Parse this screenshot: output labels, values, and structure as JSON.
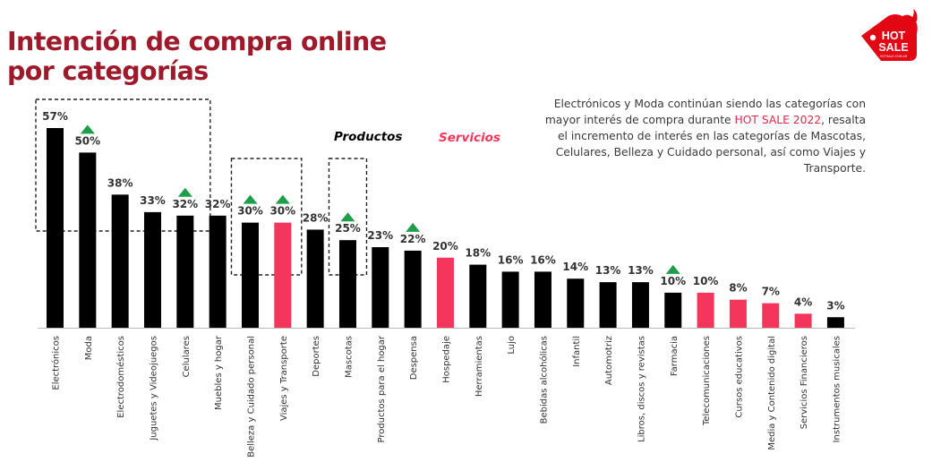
{
  "title": {
    "line1": "Intención de compra online",
    "line2": "por categorías"
  },
  "note": {
    "part1": "Electrónicos y Moda continúan siendo las categorías con mayor interés de compra durante ",
    "highlight": "HOT SALE 2022",
    "part2": ", resalta el incremento de interés en las categorías de Mascotas, Celulares, Belleza y Cuidado personal, así como Viajes y Transporte."
  },
  "logo": {
    "line1": "HOT",
    "line2": "SALE",
    "small": "HOTSALE.COM.AR"
  },
  "colors": {
    "producto": "#000000",
    "servicio": "#f5365c",
    "up_arrow": "#1e9e4a",
    "title": "#9e1a2a"
  },
  "chart_data": {
    "type": "bar",
    "title": "Intención de compra online por categorías",
    "xlabel": "",
    "ylabel": "",
    "ylim": [
      0,
      57
    ],
    "legend": [
      "Productos",
      "Servicios"
    ],
    "categories": [
      "Electrónicos",
      "Moda",
      "Electrodomésticos",
      "Juguetes y Videojuegos",
      "Celulares",
      "Muebles y hogar",
      "Belleza y Cuidado personal",
      "Viajes y Transporte",
      "Deportes",
      "Mascotas",
      "Productos para el hogar",
      "Despensa",
      "Hospedaje",
      "Herramientas",
      "Lujo",
      "Bebidas alcohólicas",
      "Infantil",
      "Automotriz",
      "Libros, discos y revistas",
      "Farmacia",
      "Telecomunicaciones",
      "Cursos educativos",
      "Media y Contenido digital",
      "Servicios Financieros",
      "Instrumentos musicales"
    ],
    "values": [
      57,
      50,
      38,
      33,
      32,
      32,
      30,
      30,
      28,
      25,
      23,
      22,
      20,
      18,
      16,
      16,
      14,
      13,
      13,
      10,
      10,
      8,
      7,
      4,
      3
    ],
    "value_labels": [
      "57%",
      "50%",
      "38%",
      "33%",
      "32%",
      "32%",
      "30%",
      "30%",
      "28%",
      "25%",
      "23%",
      "22%",
      "20%",
      "18%",
      "16%",
      "16%",
      "14%",
      "13%",
      "13%",
      "10%",
      "10%",
      "8%",
      "7%",
      "4%",
      "3%"
    ],
    "kind": [
      "p",
      "p",
      "p",
      "p",
      "p",
      "p",
      "p",
      "s",
      "p",
      "p",
      "p",
      "p",
      "s",
      "p",
      "p",
      "p",
      "p",
      "p",
      "p",
      "p",
      "s",
      "s",
      "s",
      "s",
      "p"
    ],
    "increase": [
      false,
      true,
      false,
      false,
      true,
      false,
      true,
      true,
      false,
      true,
      false,
      true,
      false,
      false,
      false,
      false,
      false,
      false,
      false,
      true,
      false,
      false,
      false,
      false,
      false
    ],
    "highlight_groups": [
      [
        "Electrónicos",
        "Moda",
        "Electrodomésticos",
        "Juguetes y Videojuegos",
        "Celulares"
      ],
      [
        "Belleza y Cuidado personal",
        "Viajes y Transporte"
      ],
      [
        "Mascotas"
      ]
    ]
  }
}
